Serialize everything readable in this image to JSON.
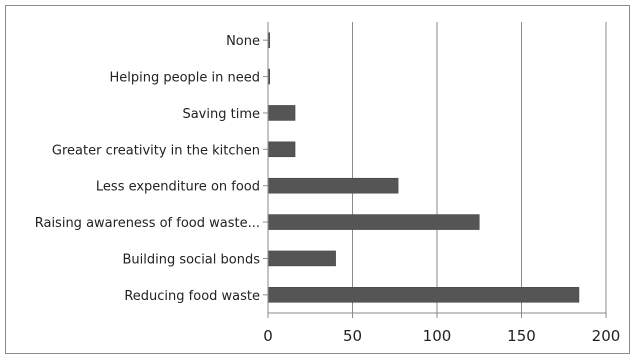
{
  "chart_data": {
    "type": "bar",
    "orientation": "horizontal",
    "title": "",
    "xlabel": "",
    "ylabel": "",
    "categories": [
      "Reducing food waste",
      "Building social bonds",
      "Raising awareness of food waste...",
      "Less expenditure on food",
      "Greater creativity in the kitchen",
      "Saving time",
      "Helping people in need",
      "None"
    ],
    "values": [
      184,
      40,
      125,
      77,
      16,
      16,
      1,
      1
    ],
    "xlim": [
      0,
      200
    ],
    "xticks": [
      "0",
      "50",
      "100",
      "150",
      "200"
    ],
    "grid": "vertical",
    "legend": "none",
    "bar_color": "#555555"
  }
}
